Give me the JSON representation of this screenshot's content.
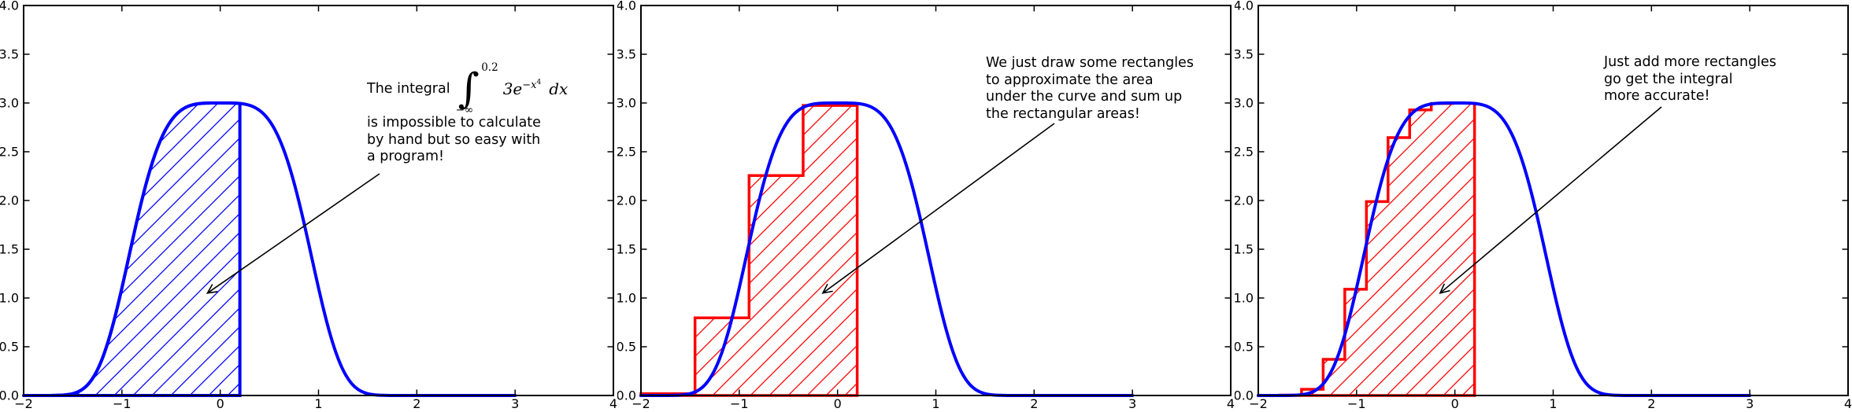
{
  "figure": {
    "background": "#ffffff",
    "frame_color": "#000000",
    "curve_color": "#0000ff",
    "fill_color": "#0000ff",
    "rect_color": "#ff0000",
    "annotation_color": "#000000"
  },
  "axes": {
    "xlim": [
      -2,
      4
    ],
    "ylim": [
      0,
      4
    ],
    "xtick_values": [
      -2,
      -1,
      0,
      1,
      2,
      3,
      4
    ],
    "xtick_labels": [
      "−2",
      "−1",
      "0",
      "1",
      "2",
      "3",
      "4"
    ],
    "ytick_values": [
      0,
      0.5,
      1,
      1.5,
      2,
      2.5,
      3,
      3.5,
      4
    ],
    "ytick_labels": [
      "0.0",
      "0.5",
      "1.0",
      "1.5",
      "2.0",
      "2.5",
      "3.0",
      "3.5",
      "4.0"
    ],
    "grid": false,
    "legend": "none"
  },
  "chart_data": [
    {
      "type": "area",
      "curve": {
        "function": "y = 3*exp(-x^4)",
        "x_start": -2,
        "x_end": 3,
        "peak_y": 3.0,
        "color": "#0000ff"
      },
      "fill_region": {
        "x_from": -2,
        "x_to": 0.2,
        "upper_bound": "curve",
        "lower_bound": 0,
        "hatch": "/",
        "color": "#0000ff"
      },
      "annotation": {
        "formula": {
          "prefix": "The integral",
          "integral_sign": "∫",
          "upper_limit": "0.2",
          "lower_limit": "−∞",
          "integrand": "3e",
          "exponent_base": "−x",
          "exponent_power": "4",
          "differential": "dx"
        },
        "lines": [
          "is impossible to calculate",
          "by hand but so easy with",
          "a program!"
        ],
        "arrow_tip_data": [
          -0.13,
          1.05
        ]
      }
    },
    {
      "type": "bar",
      "curve": {
        "function": "y = 3*exp(-x^4)",
        "x_start": -2,
        "x_end": 3,
        "peak_y": 3.0,
        "color": "#0000ff"
      },
      "rectangles": {
        "edges": [
          -2,
          -1.45,
          -0.9,
          -0.35,
          0.2
        ],
        "heights": [
          0.018,
          0.796,
          2.256,
          2.975
        ],
        "hatch": "/",
        "color": "#ff0000"
      },
      "annotation": {
        "lines": [
          "We just draw some rectangles",
          "to approximate the area",
          "under the curve and sum up",
          "the rectangular areas!"
        ],
        "arrow_tip_data": [
          -0.15,
          1.05
        ]
      }
    },
    {
      "type": "bar",
      "curve": {
        "function": "y = 3*exp(-x^4)",
        "x_start": -2,
        "x_end": 3,
        "peak_y": 3.0,
        "color": "#0000ff"
      },
      "rectangles": {
        "edges": [
          -2,
          -1.78,
          -1.56,
          -1.34,
          -1.12,
          -0.9,
          -0.68,
          -0.46,
          -0.24,
          -0.02,
          0.2
        ],
        "heights": [
          0.0001,
          0.0041,
          0.0638,
          0.3714,
          1.09,
          1.989,
          2.645,
          2.929,
          2.995,
          2.998
        ],
        "hatch": "/",
        "color": "#ff0000"
      },
      "annotation": {
        "lines": [
          "Just add more rectangles",
          "go get the integral",
          "more accurate!"
        ],
        "arrow_tip_data": [
          -0.15,
          1.05
        ]
      }
    }
  ]
}
